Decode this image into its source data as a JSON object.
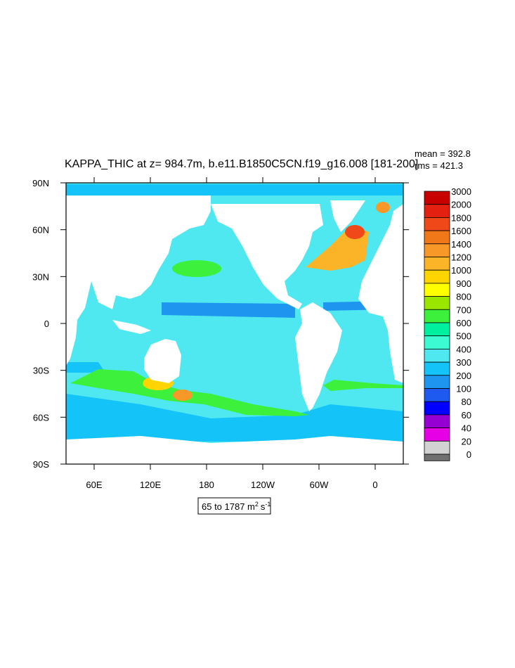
{
  "header": {
    "title": "KAPPA_THIC at z= 984.7m, b.e11.B1850C5CN.f19_g16.008 [181-200]",
    "mean": "mean = 392.8",
    "rms": "rms = 421.3"
  },
  "axes": {
    "y_labels": [
      "90N",
      "60N",
      "30N",
      "0",
      "30S",
      "60S",
      "90S"
    ],
    "x_labels": [
      "60E",
      "120E",
      "180",
      "120W",
      "60W",
      "0"
    ]
  },
  "colorbar": {
    "labels": [
      3000,
      2000,
      1800,
      1600,
      1400,
      1200,
      1000,
      900,
      800,
      700,
      600,
      500,
      400,
      300,
      200,
      100,
      80,
      60,
      40,
      20,
      0
    ],
    "colors": [
      "#c80000",
      "#e42010",
      "#f04818",
      "#f07818",
      "#f89828",
      "#fbb428",
      "#ffd400",
      "#ffff00",
      "#9be600",
      "#3cf03c",
      "#00f0a0",
      "#3cfad2",
      "#50e8f0",
      "#14c3f8",
      "#1e96f0",
      "#1e5af0",
      "#0000ff",
      "#9600d2",
      "#e600e6",
      "#d2d2d2",
      "#707070"
    ]
  },
  "units": {
    "base": "65 to 1787 m",
    "sup1": "2",
    "mid": "s",
    "sup2": "-1"
  }
}
